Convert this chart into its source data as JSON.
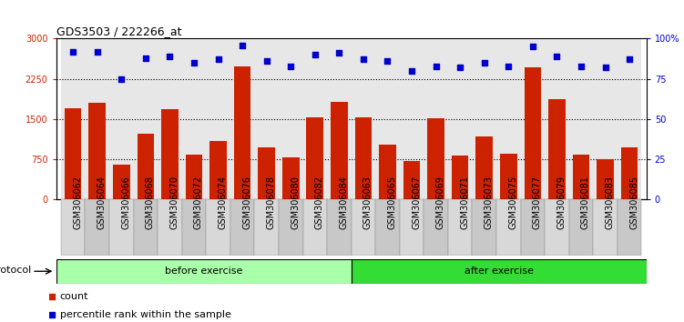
{
  "title": "GDS3503 / 222266_at",
  "categories": [
    "GSM306062",
    "GSM306064",
    "GSM306066",
    "GSM306068",
    "GSM306070",
    "GSM306072",
    "GSM306074",
    "GSM306076",
    "GSM306078",
    "GSM306080",
    "GSM306082",
    "GSM306084",
    "GSM306063",
    "GSM306065",
    "GSM306067",
    "GSM306069",
    "GSM306071",
    "GSM306073",
    "GSM306075",
    "GSM306077",
    "GSM306079",
    "GSM306081",
    "GSM306083",
    "GSM306085"
  ],
  "counts": [
    1700,
    1800,
    660,
    1230,
    1680,
    840,
    1100,
    2480,
    970,
    780,
    1530,
    1820,
    1530,
    1020,
    720,
    1510,
    820,
    1180,
    850,
    2470,
    1870,
    840,
    760,
    980
  ],
  "percentiles": [
    92,
    92,
    75,
    88,
    89,
    85,
    87,
    96,
    86,
    83,
    90,
    91,
    87,
    86,
    80,
    83,
    82,
    85,
    83,
    95,
    89,
    83,
    82,
    87
  ],
  "bar_color": "#cc2200",
  "dot_color": "#0000cc",
  "ylim_left": [
    0,
    3000
  ],
  "ylim_right": [
    0,
    100
  ],
  "yticks_left": [
    0,
    750,
    1500,
    2250,
    3000
  ],
  "yticks_right": [
    0,
    25,
    50,
    75,
    100
  ],
  "ytick_right_labels": [
    "0",
    "25",
    "50",
    "75",
    "100%"
  ],
  "before_exercise_count": 12,
  "after_exercise_count": 12,
  "before_label": "before exercise",
  "after_label": "after exercise",
  "protocol_label": "protocol",
  "legend_count_label": "count",
  "legend_percentile_label": "percentile rank within the sample",
  "before_color": "#aaffaa",
  "after_color": "#33dd33",
  "title_fontsize": 9,
  "tick_fontsize": 7,
  "label_fontsize": 8
}
